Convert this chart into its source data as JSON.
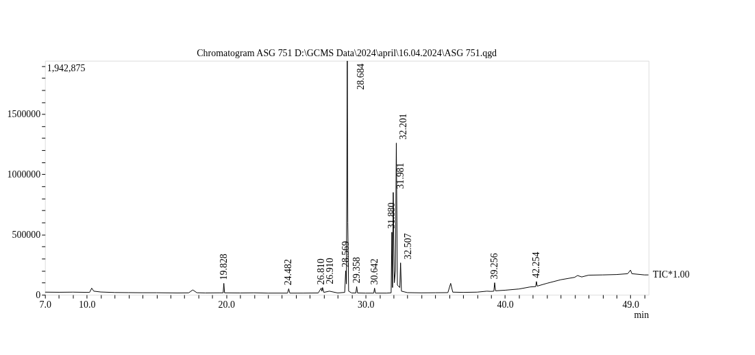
{
  "chart_data": {
    "type": "line",
    "title": "Chromatogram ASG 751 D:\\GCMS Data\\2024\\april\\16.04.2024\\ASG 751.qgd",
    "xlabel": "min",
    "xlim": [
      7.0,
      50.3
    ],
    "ylim": [
      0,
      1942875
    ],
    "xticks": [
      {
        "value": 7,
        "label": "7.0"
      },
      {
        "value": 8,
        "label": null
      },
      {
        "value": 9,
        "label": null
      },
      {
        "value": 10,
        "label": "10.0"
      },
      {
        "value": 11,
        "label": null
      },
      {
        "value": 12,
        "label": null
      },
      {
        "value": 13,
        "label": null
      },
      {
        "value": 14,
        "label": null
      },
      {
        "value": 15,
        "label": null
      },
      {
        "value": 16,
        "label": null
      },
      {
        "value": 17,
        "label": null
      },
      {
        "value": 18,
        "label": null
      },
      {
        "value": 19,
        "label": null
      },
      {
        "value": 20,
        "label": "20.0"
      },
      {
        "value": 21,
        "label": null
      },
      {
        "value": 22,
        "label": null
      },
      {
        "value": 23,
        "label": null
      },
      {
        "value": 24,
        "label": null
      },
      {
        "value": 25,
        "label": null
      },
      {
        "value": 26,
        "label": null
      },
      {
        "value": 27,
        "label": null
      },
      {
        "value": 28,
        "label": null
      },
      {
        "value": 29,
        "label": null
      },
      {
        "value": 30,
        "label": "30.0"
      },
      {
        "value": 31,
        "label": null
      },
      {
        "value": 32,
        "label": null
      },
      {
        "value": 33,
        "label": null
      },
      {
        "value": 34,
        "label": null
      },
      {
        "value": 35,
        "label": null
      },
      {
        "value": 36,
        "label": null
      },
      {
        "value": 37,
        "label": null
      },
      {
        "value": 38,
        "label": null
      },
      {
        "value": 39,
        "label": null
      },
      {
        "value": 40,
        "label": "40.0"
      },
      {
        "value": 41,
        "label": null
      },
      {
        "value": 42,
        "label": null
      },
      {
        "value": 43,
        "label": null
      },
      {
        "value": 44,
        "label": null
      },
      {
        "value": 45,
        "label": null
      },
      {
        "value": 46,
        "label": null
      },
      {
        "value": 47,
        "label": null
      },
      {
        "value": 48,
        "label": null
      },
      {
        "value": 49,
        "label": "49.0"
      },
      {
        "value": 50,
        "label": null
      }
    ],
    "yticks": [
      0,
      {
        "value": 100000,
        "label": null
      },
      {
        "value": 200000,
        "label": null
      },
      {
        "value": 300000,
        "label": null
      },
      {
        "value": 400000,
        "label": null
      },
      500000,
      {
        "value": 600000,
        "label": null
      },
      {
        "value": 700000,
        "label": null
      },
      {
        "value": 800000,
        "label": null
      },
      {
        "value": 900000,
        "label": null
      },
      1000000,
      {
        "value": 1100000,
        "label": null
      },
      {
        "value": 1200000,
        "label": null
      },
      {
        "value": 1300000,
        "label": null
      },
      {
        "value": 1400000,
        "label": null
      },
      1500000,
      {
        "value": 1600000,
        "label": null
      },
      {
        "value": 1700000,
        "label": null
      },
      {
        "value": 1800000,
        "label": null
      },
      {
        "value": 1900000,
        "label": null
      }
    ],
    "series": [
      {
        "name": "TIC*1.00",
        "color": "#000000",
        "x": [
          7.0,
          8.0,
          9.0,
          10.2,
          10.35,
          10.5,
          11.0,
          12.0,
          13.0,
          14.0,
          15.0,
          16.5,
          17.3,
          17.6,
          17.9,
          18.5,
          19.5,
          19.78,
          19.828,
          19.88,
          21.0,
          22.0,
          23.0,
          24.4,
          24.482,
          24.56,
          25.5,
          26.6,
          26.81,
          26.86,
          26.91,
          27.0,
          27.4,
          28.0,
          28.5,
          28.569,
          28.62,
          28.684,
          28.72,
          28.78,
          29.0,
          29.3,
          29.358,
          29.42,
          30.0,
          30.58,
          30.642,
          30.7,
          31.5,
          31.83,
          31.88,
          31.93,
          31.981,
          32.06,
          32.14,
          32.201,
          32.28,
          32.45,
          32.507,
          32.57,
          33.0,
          34.0,
          35.0,
          35.9,
          36.1,
          36.25,
          37.0,
          38.0,
          38.7,
          39.0,
          39.2,
          39.256,
          39.32,
          40.0,
          41.0,
          41.8,
          42.2,
          42.254,
          42.31,
          43.0,
          44.0,
          45.0,
          45.2,
          45.5,
          46.0,
          47.0,
          48.0,
          48.8,
          49.0,
          49.1,
          50.0,
          50.3
        ],
        "values": [
          22000,
          21000,
          22000,
          20000,
          55000,
          30000,
          23000,
          19000,
          18000,
          17000,
          17000,
          15000,
          16000,
          40000,
          17000,
          15000,
          16000,
          16000,
          95000,
          16000,
          15000,
          16000,
          14000,
          14000,
          50000,
          14000,
          14000,
          15000,
          55000,
          30000,
          60000,
          20000,
          30000,
          15000,
          20000,
          200000,
          90000,
          1942875,
          600000,
          30000,
          15000,
          15000,
          68000,
          15000,
          14000,
          14000,
          55000,
          14000,
          14000,
          16000,
          520000,
          60000,
          850000,
          100000,
          200000,
          1260000,
          80000,
          60000,
          265000,
          30000,
          18000,
          16000,
          17000,
          18000,
          95000,
          22000,
          20000,
          22000,
          30000,
          28000,
          30000,
          100000,
          33000,
          38000,
          48000,
          65000,
          68000,
          110000,
          72000,
          95000,
          125000,
          145000,
          160000,
          148000,
          163000,
          165000,
          168000,
          175000,
          205000,
          175000,
          165000,
          165000
        ]
      }
    ],
    "annotations": [
      "1,942,875",
      {
        "text": "19.828",
        "x": 19.828,
        "y": 95000
      },
      {
        "text": "24.482",
        "x": 24.482,
        "y": 50000
      },
      {
        "text": "26.810",
        "x": 26.81,
        "y": 55000
      },
      {
        "text": "26.910",
        "x": 26.91,
        "y": 60000
      },
      {
        "text": "28.569",
        "x": 28.569,
        "y": 200000
      },
      {
        "text": "28.684",
        "x": 28.684,
        "y": 1942875
      },
      {
        "text": "29.358",
        "x": 29.358,
        "y": 68000
      },
      {
        "text": "30.642",
        "x": 30.642,
        "y": 55000
      },
      {
        "text": "31.880",
        "x": 31.88,
        "y": 520000
      },
      {
        "text": "31.981",
        "x": 31.981,
        "y": 850000
      },
      {
        "text": "32.201",
        "x": 32.201,
        "y": 1260000
      },
      {
        "text": "32.507",
        "x": 32.507,
        "y": 265000
      },
      {
        "text": "39.256",
        "x": 39.256,
        "y": 100000
      },
      {
        "text": "42.254",
        "x": 42.254,
        "y": 110000
      }
    ]
  }
}
